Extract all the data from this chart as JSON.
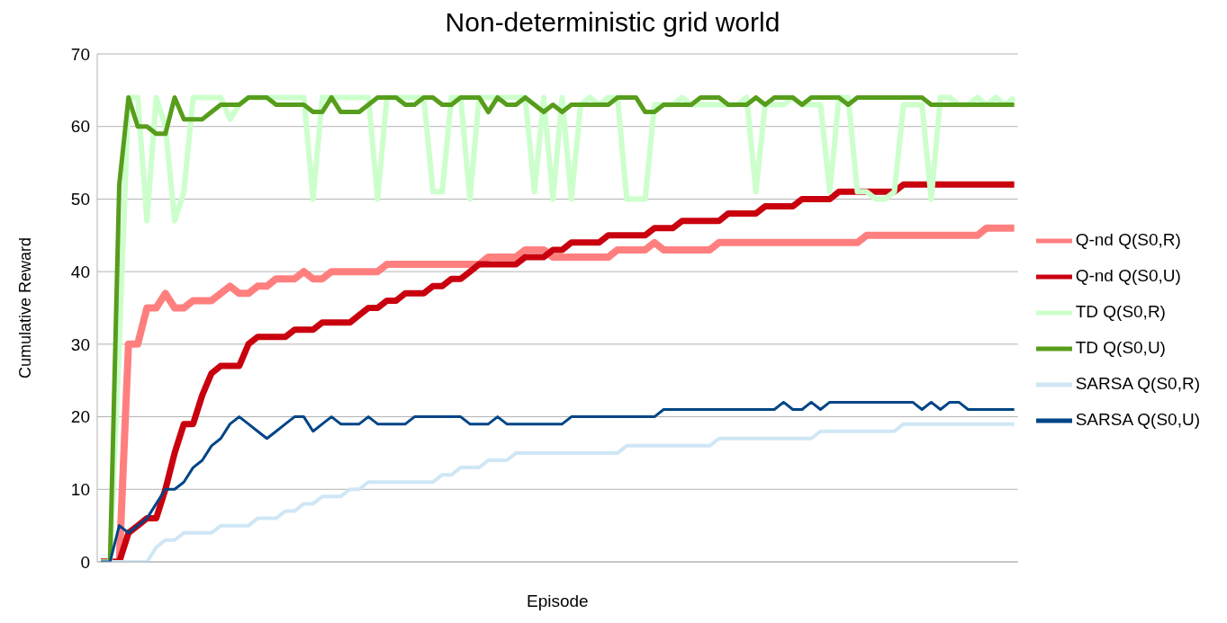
{
  "chart_data": {
    "type": "line",
    "title": "Non-deterministic grid world",
    "xlabel": "Episode",
    "ylabel": "Cumulative Reward",
    "categories": [
      null,
      null,
      null,
      null,
      null,
      null,
      null,
      null,
      null,
      null,
      null,
      null,
      null,
      null,
      null,
      null,
      null,
      null,
      null,
      null,
      null,
      null,
      null,
      null,
      null,
      null,
      null,
      null,
      null,
      null,
      null,
      null,
      null,
      null,
      null,
      null,
      null,
      null,
      null,
      null,
      null,
      null,
      null,
      null,
      null,
      null,
      null,
      null,
      null,
      null,
      null,
      null,
      null,
      null,
      null,
      null,
      null,
      null,
      null,
      null,
      null,
      null,
      null,
      null,
      null,
      null,
      null,
      null,
      null,
      null,
      null,
      null,
      null,
      null,
      null,
      null,
      null,
      null,
      null,
      null,
      null,
      null,
      null,
      null,
      null,
      null,
      null,
      null,
      null,
      null,
      null,
      null,
      null,
      null,
      null,
      null,
      null,
      null,
      null,
      null
    ],
    "ylim": [
      0,
      70
    ],
    "yticks": [
      0,
      10,
      20,
      30,
      40,
      50,
      60,
      70
    ],
    "grid": "y",
    "legend": "right",
    "tick_labels": "y",
    "marker": "none",
    "line_style": "solid",
    "series": [
      {
        "name": "Q-nd Q(S0,R)",
        "color": "#ff7f7f",
        "values": [
          0,
          0,
          0,
          30,
          30,
          35,
          35,
          37,
          35,
          35,
          36,
          36,
          36,
          37,
          38,
          37,
          37,
          38,
          38,
          39,
          39,
          39,
          40,
          39,
          39,
          40,
          40,
          40,
          40,
          40,
          40,
          41,
          41,
          41,
          41,
          41,
          41,
          41,
          41,
          41,
          41,
          41,
          42,
          42,
          42,
          42,
          43,
          43,
          43,
          42,
          42,
          42,
          42,
          42,
          42,
          42,
          43,
          43,
          43,
          43,
          44,
          43,
          43,
          43,
          43,
          43,
          43,
          44,
          44,
          44,
          44,
          44,
          44,
          44,
          44,
          44,
          44,
          44,
          44,
          44,
          44,
          44,
          44,
          45,
          45,
          45,
          45,
          45,
          45,
          45,
          45,
          45,
          45,
          45,
          45,
          45,
          46,
          46,
          46,
          46
        ]
      },
      {
        "name": "Q-nd Q(S0,U)",
        "color": "#c9000e",
        "values": [
          0,
          0,
          0,
          4,
          5,
          6,
          6,
          10,
          15,
          19,
          19,
          23,
          26,
          27,
          27,
          27,
          30,
          31,
          31,
          31,
          31,
          32,
          32,
          32,
          33,
          33,
          33,
          33,
          34,
          35,
          35,
          36,
          36,
          37,
          37,
          37,
          38,
          38,
          39,
          39,
          40,
          41,
          41,
          41,
          41,
          41,
          42,
          42,
          42,
          43,
          43,
          44,
          44,
          44,
          44,
          45,
          45,
          45,
          45,
          45,
          46,
          46,
          46,
          47,
          47,
          47,
          47,
          47,
          48,
          48,
          48,
          48,
          49,
          49,
          49,
          49,
          50,
          50,
          50,
          50,
          51,
          51,
          51,
          51,
          51,
          51,
          51,
          52,
          52,
          52,
          52,
          52,
          52,
          52,
          52,
          52,
          52,
          52,
          52,
          52
        ]
      },
      {
        "name": "TD Q(S0,R)",
        "color": "#ccffcc",
        "values": [
          0,
          0,
          30,
          64,
          64,
          47,
          64,
          60,
          47,
          51,
          64,
          64,
          64,
          64,
          61,
          63,
          64,
          64,
          64,
          64,
          64,
          64,
          64,
          50,
          64,
          64,
          64,
          64,
          64,
          64,
          50,
          64,
          64,
          64,
          64,
          64,
          51,
          51,
          64,
          64,
          50,
          64,
          64,
          64,
          64,
          64,
          64,
          51,
          64,
          50,
          64,
          50,
          63,
          64,
          63,
          64,
          64,
          50,
          50,
          50,
          63,
          63,
          63,
          64,
          63,
          63,
          63,
          63,
          63,
          63,
          64,
          51,
          63,
          63,
          63,
          64,
          63,
          63,
          63,
          51,
          64,
          64,
          51,
          51,
          50,
          50,
          51,
          63,
          63,
          63,
          50,
          64,
          64,
          63,
          63,
          64,
          63,
          64,
          63,
          64
        ]
      },
      {
        "name": "TD Q(S0,U)",
        "color": "#579d1c",
        "values": [
          0,
          0,
          52,
          64,
          60,
          60,
          59,
          59,
          64,
          61,
          61,
          61,
          62,
          63,
          63,
          63,
          64,
          64,
          64,
          63,
          63,
          63,
          63,
          62,
          62,
          64,
          62,
          62,
          62,
          63,
          64,
          64,
          64,
          63,
          63,
          64,
          64,
          63,
          63,
          64,
          64,
          64,
          62,
          64,
          63,
          63,
          64,
          63,
          62,
          63,
          62,
          63,
          63,
          63,
          63,
          63,
          64,
          64,
          64,
          62,
          62,
          63,
          63,
          63,
          63,
          64,
          64,
          64,
          63,
          63,
          63,
          64,
          63,
          64,
          64,
          64,
          63,
          64,
          64,
          64,
          64,
          63,
          64,
          64,
          64,
          64,
          64,
          64,
          64,
          64,
          63,
          63,
          63,
          63,
          63,
          63,
          63,
          63,
          63,
          63
        ]
      },
      {
        "name": "SARSA Q(S0,R)",
        "color": "#cfe7f5",
        "values": [
          0,
          0,
          0,
          0,
          0,
          0,
          2,
          3,
          3,
          4,
          4,
          4,
          4,
          5,
          5,
          5,
          5,
          6,
          6,
          6,
          7,
          7,
          8,
          8,
          9,
          9,
          9,
          10,
          10,
          11,
          11,
          11,
          11,
          11,
          11,
          11,
          11,
          12,
          12,
          13,
          13,
          13,
          14,
          14,
          14,
          15,
          15,
          15,
          15,
          15,
          15,
          15,
          15,
          15,
          15,
          15,
          15,
          16,
          16,
          16,
          16,
          16,
          16,
          16,
          16,
          16,
          16,
          17,
          17,
          17,
          17,
          17,
          17,
          17,
          17,
          17,
          17,
          17,
          18,
          18,
          18,
          18,
          18,
          18,
          18,
          18,
          18,
          19,
          19,
          19,
          19,
          19,
          19,
          19,
          19,
          19,
          19,
          19,
          19,
          19
        ]
      },
      {
        "name": "SARSA Q(S0,U)",
        "color": "#004586",
        "values": [
          0,
          0,
          5,
          4,
          5,
          6,
          8,
          10,
          10,
          11,
          13,
          14,
          16,
          17,
          19,
          20,
          19,
          18,
          17,
          18,
          19,
          20,
          20,
          18,
          19,
          20,
          19,
          19,
          19,
          20,
          19,
          19,
          19,
          19,
          20,
          20,
          20,
          20,
          20,
          20,
          19,
          19,
          19,
          20,
          19,
          19,
          19,
          19,
          19,
          19,
          19,
          20,
          20,
          20,
          20,
          20,
          20,
          20,
          20,
          20,
          20,
          21,
          21,
          21,
          21,
          21,
          21,
          21,
          21,
          21,
          21,
          21,
          21,
          21,
          22,
          21,
          21,
          22,
          21,
          22,
          22,
          22,
          22,
          22,
          22,
          22,
          22,
          22,
          22,
          21,
          22,
          21,
          22,
          22,
          21,
          21,
          21,
          21,
          21,
          21
        ]
      }
    ]
  }
}
